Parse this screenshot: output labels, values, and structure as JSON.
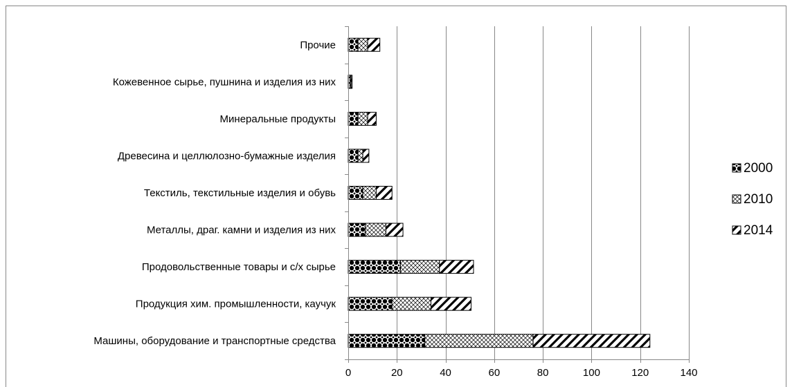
{
  "chart_data": {
    "type": "bar",
    "orientation": "horizontal",
    "stacked": true,
    "categories": [
      "Машины, оборудование и транспортные средства",
      "Продукция хим. промышленности, каучук",
      "Продовольственные товары и с/х сырье",
      "Металлы, драг. камни и изделия из них",
      "Текстиль, текстильные изделия и обувь",
      "Древесина и целлюлозно-бумажные изделия",
      "Минеральные продукты",
      "Кожевенное сырье, пушнина и изделия из них",
      "Прочие"
    ],
    "series": [
      {
        "name": "2000",
        "pattern": "dots",
        "values": [
          31.5,
          18,
          21.5,
          7,
          6,
          4,
          4,
          0.8,
          4
        ]
      },
      {
        "name": "2010",
        "pattern": "crosshatch",
        "values": [
          44.5,
          16,
          16,
          8.5,
          5.5,
          2,
          4,
          0.4,
          4
        ]
      },
      {
        "name": "2014",
        "pattern": "diagonal",
        "values": [
          48,
          16.5,
          14,
          7,
          6.5,
          2.5,
          3.5,
          0.4,
          5
        ]
      }
    ],
    "xlim": [
      0,
      140
    ],
    "xticks": [
      "0",
      "20",
      "40",
      "60",
      "80",
      "100",
      "120",
      "140"
    ],
    "grid": "vertical",
    "legend_position": "right",
    "title": "",
    "xlabel": "",
    "ylabel": "",
    "colors": {
      "bar_fill": "#000000",
      "background": "#ffffff",
      "grid": "#878787",
      "frame": "#878787"
    }
  }
}
